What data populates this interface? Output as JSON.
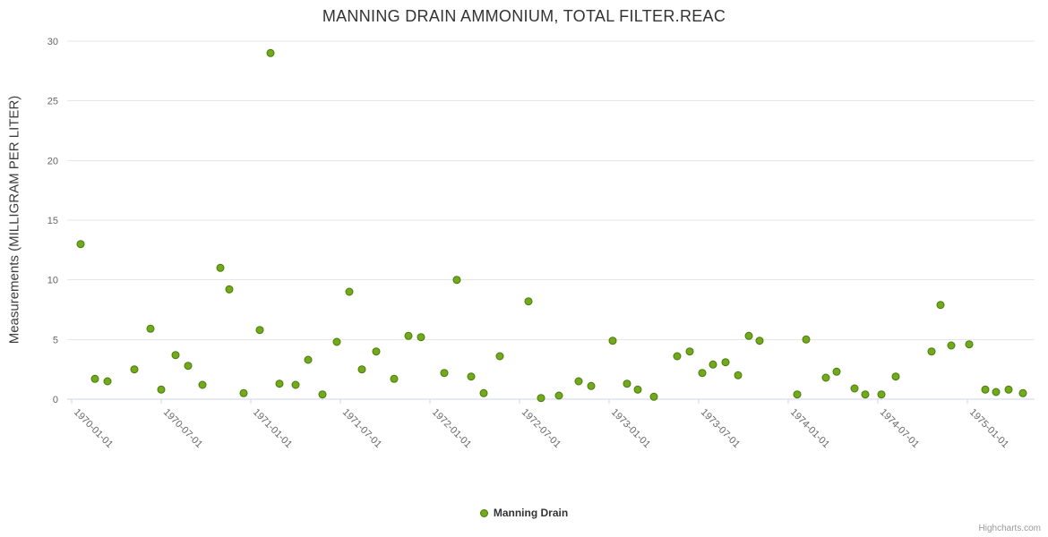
{
  "chart_data": {
    "type": "scatter",
    "title": "MANNING DRAIN AMMONIUM, TOTAL FILTER.REAC",
    "ylabel": "Measurements (MILLIGRAM PER LITER)",
    "xlabel": "",
    "series_name": "Manning Drain",
    "legend_position": "bottom-center",
    "grid": true,
    "ylim": [
      0,
      30
    ],
    "xlim": [
      1969.975,
      1975.375
    ],
    "y_ticks": [
      0,
      5,
      10,
      15,
      20,
      25,
      30
    ],
    "x_ticks": [
      {
        "x": 1970.0,
        "label": "1970-01-01"
      },
      {
        "x": 1970.5,
        "label": "1970-07-01"
      },
      {
        "x": 1971.0,
        "label": "1971-01-01"
      },
      {
        "x": 1971.5,
        "label": "1971-07-01"
      },
      {
        "x": 1972.0,
        "label": "1972-01-01"
      },
      {
        "x": 1972.5,
        "label": "1972-07-01"
      },
      {
        "x": 1973.0,
        "label": "1973-01-01"
      },
      {
        "x": 1973.5,
        "label": "1973-07-01"
      },
      {
        "x": 1974.0,
        "label": "1974-01-01"
      },
      {
        "x": 1974.5,
        "label": "1974-07-01"
      },
      {
        "x": 1975.0,
        "label": "1975-01-01"
      }
    ],
    "marker_color": "#72aa1c",
    "marker_stroke": "#4a7a0b",
    "points": [
      [
        1970.05,
        13.0
      ],
      [
        1970.13,
        1.7
      ],
      [
        1970.2,
        1.5
      ],
      [
        1970.35,
        2.5
      ],
      [
        1970.44,
        5.9
      ],
      [
        1970.5,
        0.8
      ],
      [
        1970.58,
        3.7
      ],
      [
        1970.65,
        2.8
      ],
      [
        1970.73,
        1.2
      ],
      [
        1970.83,
        11.0
      ],
      [
        1970.88,
        9.2
      ],
      [
        1970.96,
        0.5
      ],
      [
        1971.05,
        5.8
      ],
      [
        1971.11,
        29.0
      ],
      [
        1971.16,
        1.3
      ],
      [
        1971.25,
        1.2
      ],
      [
        1971.32,
        3.3
      ],
      [
        1971.4,
        0.4
      ],
      [
        1971.48,
        4.8
      ],
      [
        1971.55,
        9.0
      ],
      [
        1971.62,
        2.5
      ],
      [
        1971.7,
        4.0
      ],
      [
        1971.8,
        1.7
      ],
      [
        1971.88,
        5.3
      ],
      [
        1971.95,
        5.2
      ],
      [
        1972.08,
        2.2
      ],
      [
        1972.15,
        10.0
      ],
      [
        1972.23,
        1.9
      ],
      [
        1972.3,
        0.5
      ],
      [
        1972.39,
        3.6
      ],
      [
        1972.55,
        8.2
      ],
      [
        1972.62,
        0.1
      ],
      [
        1972.72,
        0.3
      ],
      [
        1972.83,
        1.5
      ],
      [
        1972.9,
        1.1
      ],
      [
        1973.02,
        4.9
      ],
      [
        1973.1,
        1.3
      ],
      [
        1973.16,
        0.8
      ],
      [
        1973.25,
        0.2
      ],
      [
        1973.38,
        3.6
      ],
      [
        1973.45,
        4.0
      ],
      [
        1973.52,
        2.2
      ],
      [
        1973.58,
        2.9
      ],
      [
        1973.65,
        3.1
      ],
      [
        1973.72,
        2.0
      ],
      [
        1973.78,
        5.3
      ],
      [
        1973.84,
        4.9
      ],
      [
        1974.05,
        0.4
      ],
      [
        1974.1,
        5.0
      ],
      [
        1974.21,
        1.8
      ],
      [
        1974.27,
        2.3
      ],
      [
        1974.37,
        0.9
      ],
      [
        1974.43,
        0.4
      ],
      [
        1974.52,
        0.4
      ],
      [
        1974.6,
        1.9
      ],
      [
        1974.8,
        4.0
      ],
      [
        1974.85,
        7.9
      ],
      [
        1974.91,
        4.5
      ],
      [
        1975.01,
        4.6
      ],
      [
        1975.1,
        0.8
      ],
      [
        1975.16,
        0.6
      ],
      [
        1975.23,
        0.8
      ],
      [
        1975.31,
        0.5
      ]
    ]
  },
  "credits": {
    "text": "Highcharts.com"
  }
}
